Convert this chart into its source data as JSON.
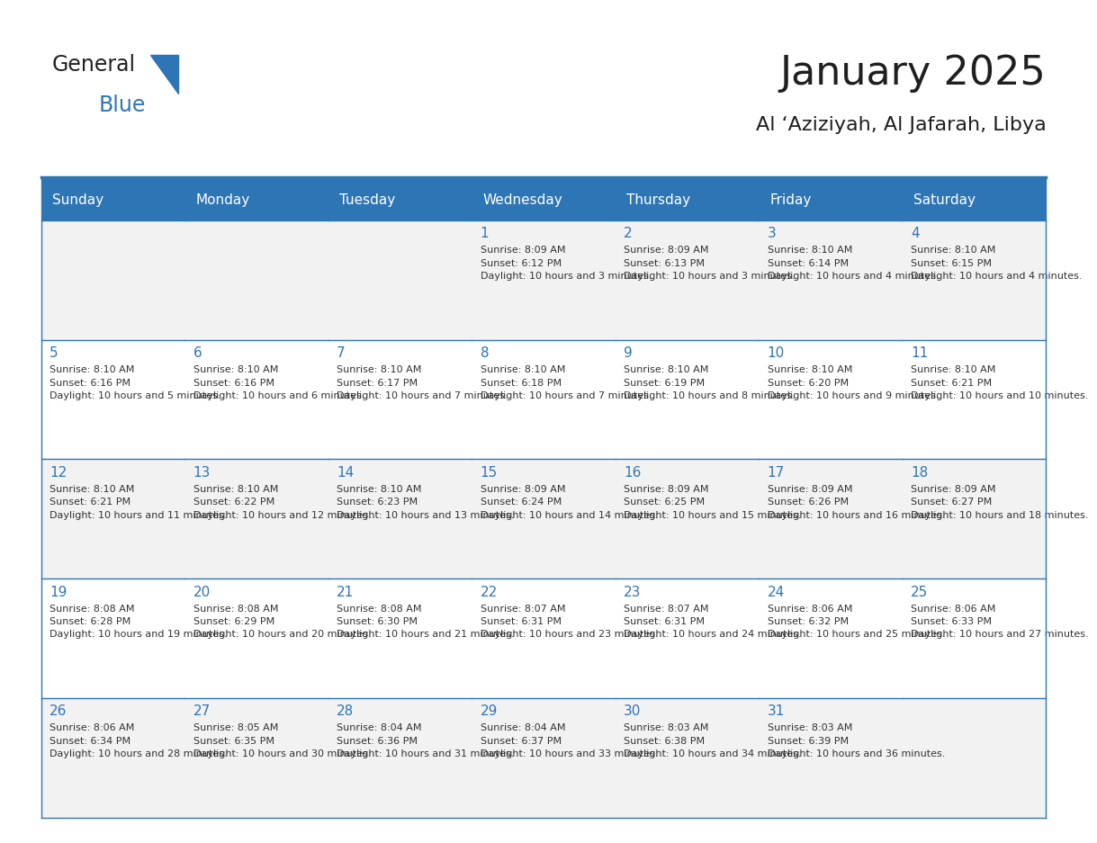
{
  "title": "January 2025",
  "subtitle": "Al ‘Aziziyah, Al Jafarah, Libya",
  "days_of_week": [
    "Sunday",
    "Monday",
    "Tuesday",
    "Wednesday",
    "Thursday",
    "Friday",
    "Saturday"
  ],
  "header_bg": "#2E75B6",
  "header_text": "#FFFFFF",
  "row_bg_odd": "#F2F2F2",
  "row_bg_even": "#FFFFFF",
  "cell_border": "#2E75B6",
  "title_color": "#1F1F1F",
  "subtitle_color": "#1F1F1F",
  "day_number_color": "#2E75B6",
  "cell_text_color": "#333333",
  "calendar_data": [
    [
      null,
      null,
      null,
      {
        "day": 1,
        "sunrise": "8:09 AM",
        "sunset": "6:12 PM",
        "daylight": "10 hours and 3 minutes."
      },
      {
        "day": 2,
        "sunrise": "8:09 AM",
        "sunset": "6:13 PM",
        "daylight": "10 hours and 3 minutes."
      },
      {
        "day": 3,
        "sunrise": "8:10 AM",
        "sunset": "6:14 PM",
        "daylight": "10 hours and 4 minutes."
      },
      {
        "day": 4,
        "sunrise": "8:10 AM",
        "sunset": "6:15 PM",
        "daylight": "10 hours and 4 minutes."
      }
    ],
    [
      {
        "day": 5,
        "sunrise": "8:10 AM",
        "sunset": "6:16 PM",
        "daylight": "10 hours and 5 minutes."
      },
      {
        "day": 6,
        "sunrise": "8:10 AM",
        "sunset": "6:16 PM",
        "daylight": "10 hours and 6 minutes."
      },
      {
        "day": 7,
        "sunrise": "8:10 AM",
        "sunset": "6:17 PM",
        "daylight": "10 hours and 7 minutes."
      },
      {
        "day": 8,
        "sunrise": "8:10 AM",
        "sunset": "6:18 PM",
        "daylight": "10 hours and 7 minutes."
      },
      {
        "day": 9,
        "sunrise": "8:10 AM",
        "sunset": "6:19 PM",
        "daylight": "10 hours and 8 minutes."
      },
      {
        "day": 10,
        "sunrise": "8:10 AM",
        "sunset": "6:20 PM",
        "daylight": "10 hours and 9 minutes."
      },
      {
        "day": 11,
        "sunrise": "8:10 AM",
        "sunset": "6:21 PM",
        "daylight": "10 hours and 10 minutes."
      }
    ],
    [
      {
        "day": 12,
        "sunrise": "8:10 AM",
        "sunset": "6:21 PM",
        "daylight": "10 hours and 11 minutes."
      },
      {
        "day": 13,
        "sunrise": "8:10 AM",
        "sunset": "6:22 PM",
        "daylight": "10 hours and 12 minutes."
      },
      {
        "day": 14,
        "sunrise": "8:10 AM",
        "sunset": "6:23 PM",
        "daylight": "10 hours and 13 minutes."
      },
      {
        "day": 15,
        "sunrise": "8:09 AM",
        "sunset": "6:24 PM",
        "daylight": "10 hours and 14 minutes."
      },
      {
        "day": 16,
        "sunrise": "8:09 AM",
        "sunset": "6:25 PM",
        "daylight": "10 hours and 15 minutes."
      },
      {
        "day": 17,
        "sunrise": "8:09 AM",
        "sunset": "6:26 PM",
        "daylight": "10 hours and 16 minutes."
      },
      {
        "day": 18,
        "sunrise": "8:09 AM",
        "sunset": "6:27 PM",
        "daylight": "10 hours and 18 minutes."
      }
    ],
    [
      {
        "day": 19,
        "sunrise": "8:08 AM",
        "sunset": "6:28 PM",
        "daylight": "10 hours and 19 minutes."
      },
      {
        "day": 20,
        "sunrise": "8:08 AM",
        "sunset": "6:29 PM",
        "daylight": "10 hours and 20 minutes."
      },
      {
        "day": 21,
        "sunrise": "8:08 AM",
        "sunset": "6:30 PM",
        "daylight": "10 hours and 21 minutes."
      },
      {
        "day": 22,
        "sunrise": "8:07 AM",
        "sunset": "6:31 PM",
        "daylight": "10 hours and 23 minutes."
      },
      {
        "day": 23,
        "sunrise": "8:07 AM",
        "sunset": "6:31 PM",
        "daylight": "10 hours and 24 minutes."
      },
      {
        "day": 24,
        "sunrise": "8:06 AM",
        "sunset": "6:32 PM",
        "daylight": "10 hours and 25 minutes."
      },
      {
        "day": 25,
        "sunrise": "8:06 AM",
        "sunset": "6:33 PM",
        "daylight": "10 hours and 27 minutes."
      }
    ],
    [
      {
        "day": 26,
        "sunrise": "8:06 AM",
        "sunset": "6:34 PM",
        "daylight": "10 hours and 28 minutes."
      },
      {
        "day": 27,
        "sunrise": "8:05 AM",
        "sunset": "6:35 PM",
        "daylight": "10 hours and 30 minutes."
      },
      {
        "day": 28,
        "sunrise": "8:04 AM",
        "sunset": "6:36 PM",
        "daylight": "10 hours and 31 minutes."
      },
      {
        "day": 29,
        "sunrise": "8:04 AM",
        "sunset": "6:37 PM",
        "daylight": "10 hours and 33 minutes."
      },
      {
        "day": 30,
        "sunrise": "8:03 AM",
        "sunset": "6:38 PM",
        "daylight": "10 hours and 34 minutes."
      },
      {
        "day": 31,
        "sunrise": "8:03 AM",
        "sunset": "6:39 PM",
        "daylight": "10 hours and 36 minutes."
      },
      null
    ]
  ]
}
